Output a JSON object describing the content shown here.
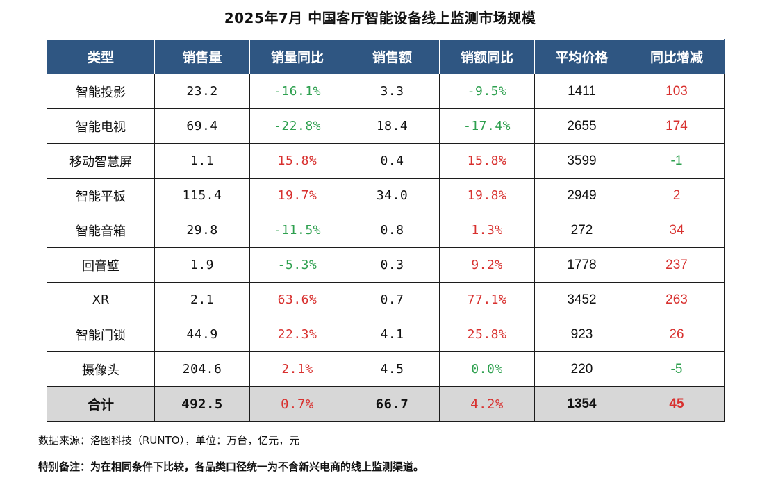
{
  "title": "2025年7月 中国客厅智能设备线上监测市场规模",
  "table": {
    "headers": [
      "类型",
      "销售量",
      "销量同比",
      "销售额",
      "销额同比",
      "平均价格",
      "同比增减"
    ],
    "rows": [
      {
        "type": "智能投影",
        "volume": "23.2",
        "volume_yoy": "-16.1%",
        "volume_yoy_dir": "neg",
        "sales": "3.3",
        "sales_yoy": "-9.5%",
        "sales_yoy_dir": "neg",
        "avg_price": "1411",
        "price_change": "103",
        "price_change_dir": "pos"
      },
      {
        "type": "智能电视",
        "volume": "69.4",
        "volume_yoy": "-22.8%",
        "volume_yoy_dir": "neg",
        "sales": "18.4",
        "sales_yoy": "-17.4%",
        "sales_yoy_dir": "neg",
        "avg_price": "2655",
        "price_change": "174",
        "price_change_dir": "pos"
      },
      {
        "type": "移动智慧屏",
        "volume": "1.1",
        "volume_yoy": "15.8%",
        "volume_yoy_dir": "pos",
        "sales": "0.4",
        "sales_yoy": "15.8%",
        "sales_yoy_dir": "pos",
        "avg_price": "3599",
        "price_change": "-1",
        "price_change_dir": "neg"
      },
      {
        "type": "智能平板",
        "volume": "115.4",
        "volume_yoy": "19.7%",
        "volume_yoy_dir": "pos",
        "sales": "34.0",
        "sales_yoy": "19.8%",
        "sales_yoy_dir": "pos",
        "avg_price": "2949",
        "price_change": "2",
        "price_change_dir": "pos"
      },
      {
        "type": "智能音箱",
        "volume": "29.8",
        "volume_yoy": "-11.5%",
        "volume_yoy_dir": "neg",
        "sales": "0.8",
        "sales_yoy": "1.3%",
        "sales_yoy_dir": "pos",
        "avg_price": "272",
        "price_change": "34",
        "price_change_dir": "pos"
      },
      {
        "type": "回音壁",
        "volume": "1.9",
        "volume_yoy": "-5.3%",
        "volume_yoy_dir": "neg",
        "sales": "0.3",
        "sales_yoy": "9.2%",
        "sales_yoy_dir": "pos",
        "avg_price": "1778",
        "price_change": "237",
        "price_change_dir": "pos"
      },
      {
        "type": "XR",
        "volume": "2.1",
        "volume_yoy": "63.6%",
        "volume_yoy_dir": "pos",
        "sales": "0.7",
        "sales_yoy": "77.1%",
        "sales_yoy_dir": "pos",
        "avg_price": "3452",
        "price_change": "263",
        "price_change_dir": "pos"
      },
      {
        "type": "智能门锁",
        "volume": "44.9",
        "volume_yoy": "22.3%",
        "volume_yoy_dir": "pos",
        "sales": "4.1",
        "sales_yoy": "25.8%",
        "sales_yoy_dir": "pos",
        "avg_price": "923",
        "price_change": "26",
        "price_change_dir": "pos"
      },
      {
        "type": "摄像头",
        "volume": "204.6",
        "volume_yoy": "2.1%",
        "volume_yoy_dir": "pos",
        "sales": "4.5",
        "sales_yoy": "0.0%",
        "sales_yoy_dir": "neu",
        "avg_price": "220",
        "price_change": "-5",
        "price_change_dir": "neg"
      }
    ],
    "total": {
      "type": "合计",
      "volume": "492.5",
      "volume_yoy": "0.7%",
      "volume_yoy_dir": "pos",
      "sales": "66.7",
      "sales_yoy": "4.2%",
      "sales_yoy_dir": "pos",
      "avg_price": "1354",
      "price_change": "45",
      "price_change_dir": "pos"
    }
  },
  "notes": {
    "source": "数据来源：洛图科技（RUNTO），单位：万台，亿元，元",
    "remark": "特别备注：为在相同条件下比较，各品类口径统一为不含新兴电商的线上监测渠道。"
  },
  "colors": {
    "header_bg": "#2f5682",
    "negative": "#2ea04f",
    "positive": "#d8312f",
    "total_bg": "#d7d7d7"
  }
}
